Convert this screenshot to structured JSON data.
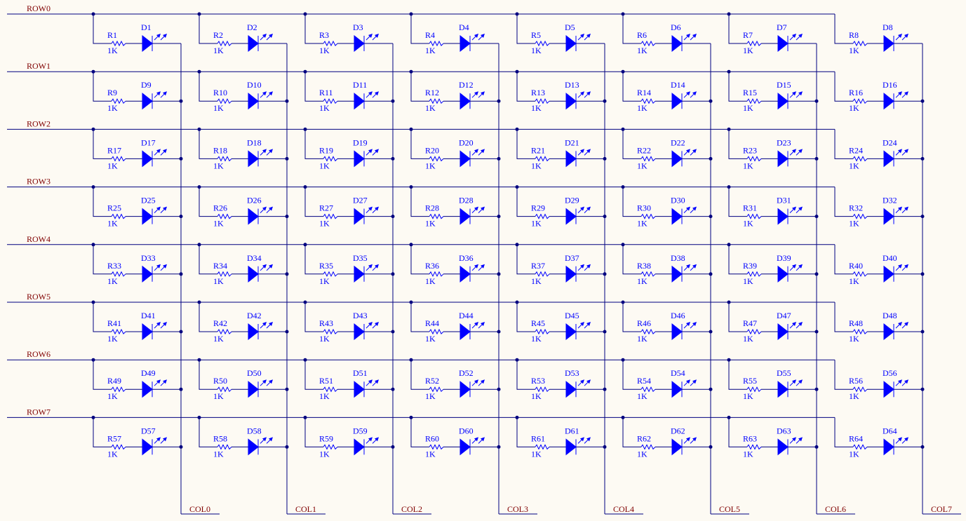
{
  "rows": [
    "ROW0",
    "ROW1",
    "ROW2",
    "ROW3",
    "ROW4",
    "ROW5",
    "ROW6",
    "ROW7"
  ],
  "columns": [
    "COL0",
    "COL1",
    "COL2",
    "COL3",
    "COL4",
    "COL5",
    "COL6",
    "COL7"
  ],
  "cells": [
    {
      "resistor": "R1",
      "value": "1K",
      "diode": "D1"
    },
    {
      "resistor": "R2",
      "value": "1K",
      "diode": "D2"
    },
    {
      "resistor": "R3",
      "value": "1K",
      "diode": "D3"
    },
    {
      "resistor": "R4",
      "value": "1K",
      "diode": "D4"
    },
    {
      "resistor": "R5",
      "value": "1K",
      "diode": "D5"
    },
    {
      "resistor": "R6",
      "value": "1K",
      "diode": "D6"
    },
    {
      "resistor": "R7",
      "value": "1K",
      "diode": "D7"
    },
    {
      "resistor": "R8",
      "value": "1K",
      "diode": "D8"
    },
    {
      "resistor": "R9",
      "value": "1K",
      "diode": "D9"
    },
    {
      "resistor": "R10",
      "value": "1K",
      "diode": "D10"
    },
    {
      "resistor": "R11",
      "value": "1K",
      "diode": "D11"
    },
    {
      "resistor": "R12",
      "value": "1K",
      "diode": "D12"
    },
    {
      "resistor": "R13",
      "value": "1K",
      "diode": "D13"
    },
    {
      "resistor": "R14",
      "value": "1K",
      "diode": "D14"
    },
    {
      "resistor": "R15",
      "value": "1K",
      "diode": "D15"
    },
    {
      "resistor": "R16",
      "value": "1K",
      "diode": "D16"
    },
    {
      "resistor": "R17",
      "value": "1K",
      "diode": "D17"
    },
    {
      "resistor": "R18",
      "value": "1K",
      "diode": "D18"
    },
    {
      "resistor": "R19",
      "value": "1K",
      "diode": "D19"
    },
    {
      "resistor": "R20",
      "value": "1K",
      "diode": "D20"
    },
    {
      "resistor": "R21",
      "value": "1K",
      "diode": "D21"
    },
    {
      "resistor": "R22",
      "value": "1K",
      "diode": "D22"
    },
    {
      "resistor": "R23",
      "value": "1K",
      "diode": "D23"
    },
    {
      "resistor": "R24",
      "value": "1K",
      "diode": "D24"
    },
    {
      "resistor": "R25",
      "value": "1K",
      "diode": "D25"
    },
    {
      "resistor": "R26",
      "value": "1K",
      "diode": "D26"
    },
    {
      "resistor": "R27",
      "value": "1K",
      "diode": "D27"
    },
    {
      "resistor": "R28",
      "value": "1K",
      "diode": "D28"
    },
    {
      "resistor": "R29",
      "value": "1K",
      "diode": "D29"
    },
    {
      "resistor": "R30",
      "value": "1K",
      "diode": "D30"
    },
    {
      "resistor": "R31",
      "value": "1K",
      "diode": "D31"
    },
    {
      "resistor": "R32",
      "value": "1K",
      "diode": "D32"
    },
    {
      "resistor": "R33",
      "value": "1K",
      "diode": "D33"
    },
    {
      "resistor": "R34",
      "value": "1K",
      "diode": "D34"
    },
    {
      "resistor": "R35",
      "value": "1K",
      "diode": "D35"
    },
    {
      "resistor": "R36",
      "value": "1K",
      "diode": "D36"
    },
    {
      "resistor": "R37",
      "value": "1K",
      "diode": "D37"
    },
    {
      "resistor": "R38",
      "value": "1K",
      "diode": "D38"
    },
    {
      "resistor": "R39",
      "value": "1K",
      "diode": "D39"
    },
    {
      "resistor": "R40",
      "value": "1K",
      "diode": "D40"
    },
    {
      "resistor": "R41",
      "value": "1K",
      "diode": "D41"
    },
    {
      "resistor": "R42",
      "value": "1K",
      "diode": "D42"
    },
    {
      "resistor": "R43",
      "value": "1K",
      "diode": "D43"
    },
    {
      "resistor": "R44",
      "value": "1K",
      "diode": "D44"
    },
    {
      "resistor": "R45",
      "value": "1K",
      "diode": "D45"
    },
    {
      "resistor": "R46",
      "value": "1K",
      "diode": "D46"
    },
    {
      "resistor": "R47",
      "value": "1K",
      "diode": "D47"
    },
    {
      "resistor": "R48",
      "value": "1K",
      "diode": "D48"
    },
    {
      "resistor": "R49",
      "value": "1K",
      "diode": "D49"
    },
    {
      "resistor": "R50",
      "value": "1K",
      "diode": "D50"
    },
    {
      "resistor": "R51",
      "value": "1K",
      "diode": "D51"
    },
    {
      "resistor": "R52",
      "value": "1K",
      "diode": "D52"
    },
    {
      "resistor": "R53",
      "value": "1K",
      "diode": "D53"
    },
    {
      "resistor": "R54",
      "value": "1K",
      "diode": "D54"
    },
    {
      "resistor": "R55",
      "value": "1K",
      "diode": "D55"
    },
    {
      "resistor": "R56",
      "value": "1K",
      "diode": "D56"
    },
    {
      "resistor": "R57",
      "value": "1K",
      "diode": "D57"
    },
    {
      "resistor": "R58",
      "value": "1K",
      "diode": "D58"
    },
    {
      "resistor": "R59",
      "value": "1K",
      "diode": "D59"
    },
    {
      "resistor": "R60",
      "value": "1K",
      "diode": "D60"
    },
    {
      "resistor": "R61",
      "value": "1K",
      "diode": "D61"
    },
    {
      "resistor": "R62",
      "value": "1K",
      "diode": "D62"
    },
    {
      "resistor": "R63",
      "value": "1K",
      "diode": "D63"
    },
    {
      "resistor": "R64",
      "value": "1K",
      "diode": "D64"
    }
  ]
}
